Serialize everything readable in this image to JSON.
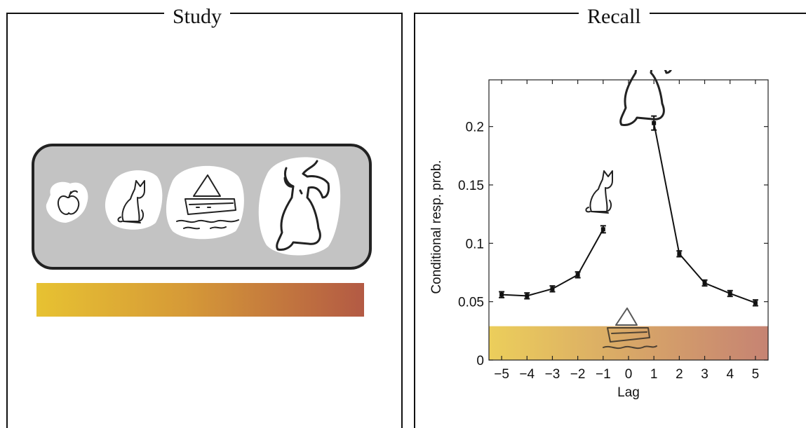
{
  "panels": {
    "study": {
      "title": "Study"
    },
    "recall": {
      "title": "Recall"
    }
  },
  "study_items": [
    "apple",
    "cat",
    "boat",
    "dog"
  ],
  "gradient_colors": [
    "#e7c232",
    "#b35a44"
  ],
  "chart_data": {
    "type": "line",
    "title": "",
    "xlabel": "Lag",
    "ylabel": "Conditional resp. prob.",
    "x": [
      -5,
      -4,
      -3,
      -2,
      -1,
      1,
      2,
      3,
      4,
      5
    ],
    "series": [
      {
        "values": [
          0.056,
          0.055,
          0.061,
          0.073,
          0.112,
          0.203,
          0.091,
          0.066,
          0.057,
          0.049
        ],
        "errors": [
          0.0025,
          0.0025,
          0.0025,
          0.0025,
          0.003,
          0.006,
          0.0025,
          0.0025,
          0.0025,
          0.0025
        ]
      }
    ],
    "xlim": [
      -5.5,
      5.5
    ],
    "ylim": [
      0,
      0.24
    ],
    "xticks": [
      -5,
      -4,
      -3,
      -2,
      -1,
      0,
      1,
      2,
      3,
      4,
      5
    ],
    "yticks": [
      0,
      0.05,
      0.1,
      0.15,
      0.2
    ],
    "ytick_labels": [
      "0",
      "0.05",
      "0.1",
      "0.15",
      "0.2"
    ],
    "grid": false
  }
}
